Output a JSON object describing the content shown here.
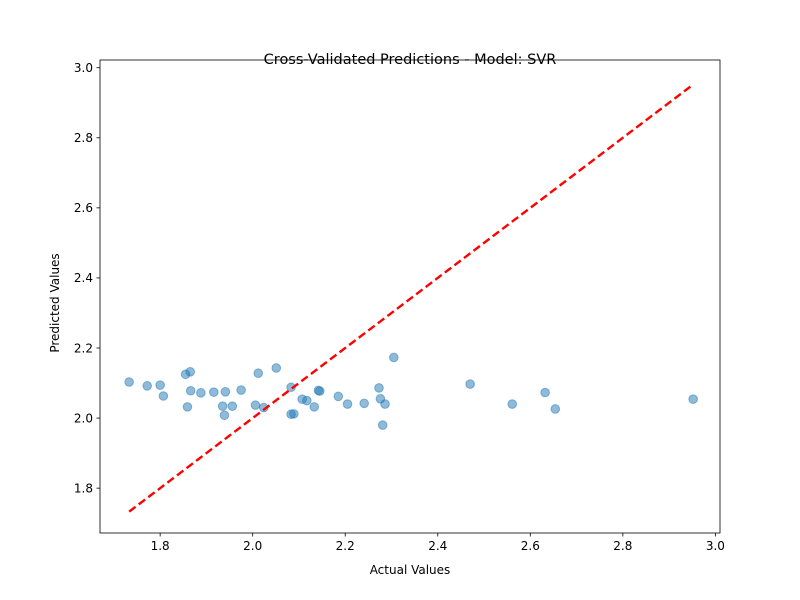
{
  "chart_data": {
    "type": "scatter",
    "title": "Cross-Validated Predictions - Model: SVR",
    "xlabel": "Actual Values",
    "ylabel": "Predicted Values",
    "xlim": [
      1.67,
      3.01
    ],
    "ylim": [
      1.672,
      3.022
    ],
    "grid": false,
    "x_ticks": [
      "1.8",
      "2.0",
      "2.2",
      "2.4",
      "2.6",
      "2.8",
      "3.0"
    ],
    "y_ticks": [
      "1.8",
      "2.0",
      "2.2",
      "2.4",
      "2.6",
      "2.8",
      "3.0"
    ],
    "colors": {
      "points": "#1f77b4",
      "reference_line": "#ff0000"
    },
    "reference_line": {
      "style": "dashed",
      "from": [
        1.733,
        1.733
      ],
      "to": [
        2.952,
        2.952
      ]
    },
    "points": [
      {
        "x": 1.733,
        "y": 2.103
      },
      {
        "x": 1.772,
        "y": 2.092
      },
      {
        "x": 1.8,
        "y": 2.094
      },
      {
        "x": 1.807,
        "y": 2.063
      },
      {
        "x": 1.855,
        "y": 2.125
      },
      {
        "x": 1.859,
        "y": 2.032
      },
      {
        "x": 1.865,
        "y": 2.132
      },
      {
        "x": 1.866,
        "y": 2.078
      },
      {
        "x": 1.888,
        "y": 2.072
      },
      {
        "x": 1.916,
        "y": 2.074
      },
      {
        "x": 1.935,
        "y": 2.034
      },
      {
        "x": 1.939,
        "y": 2.008
      },
      {
        "x": 1.941,
        "y": 2.075
      },
      {
        "x": 1.956,
        "y": 2.034
      },
      {
        "x": 1.975,
        "y": 2.08
      },
      {
        "x": 2.006,
        "y": 2.037
      },
      {
        "x": 2.012,
        "y": 2.128
      },
      {
        "x": 2.024,
        "y": 2.03
      },
      {
        "x": 2.051,
        "y": 2.143
      },
      {
        "x": 2.083,
        "y": 2.088
      },
      {
        "x": 2.083,
        "y": 2.011
      },
      {
        "x": 2.089,
        "y": 2.012
      },
      {
        "x": 2.107,
        "y": 2.054
      },
      {
        "x": 2.117,
        "y": 2.05
      },
      {
        "x": 2.133,
        "y": 2.032
      },
      {
        "x": 2.142,
        "y": 2.079
      },
      {
        "x": 2.145,
        "y": 2.077
      },
      {
        "x": 2.185,
        "y": 2.062
      },
      {
        "x": 2.205,
        "y": 2.04
      },
      {
        "x": 2.241,
        "y": 2.042
      },
      {
        "x": 2.273,
        "y": 2.086
      },
      {
        "x": 2.276,
        "y": 2.055
      },
      {
        "x": 2.281,
        "y": 1.98
      },
      {
        "x": 2.286,
        "y": 2.04
      },
      {
        "x": 2.305,
        "y": 2.173
      },
      {
        "x": 2.47,
        "y": 2.097
      },
      {
        "x": 2.561,
        "y": 2.04
      },
      {
        "x": 2.632,
        "y": 2.073
      },
      {
        "x": 2.654,
        "y": 2.026
      },
      {
        "x": 2.952,
        "y": 2.054
      }
    ]
  }
}
